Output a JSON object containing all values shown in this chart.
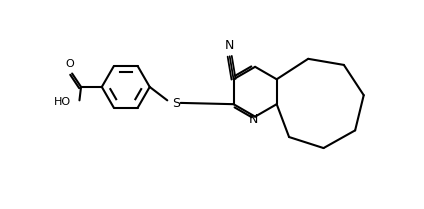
{
  "background": "#ffffff",
  "line_color": "#000000",
  "line_width": 1.5,
  "figsize": [
    4.24,
    2.09
  ],
  "dpi": 100,
  "xlim": [
    0,
    11
  ],
  "ylim": [
    -1,
    5.5
  ]
}
